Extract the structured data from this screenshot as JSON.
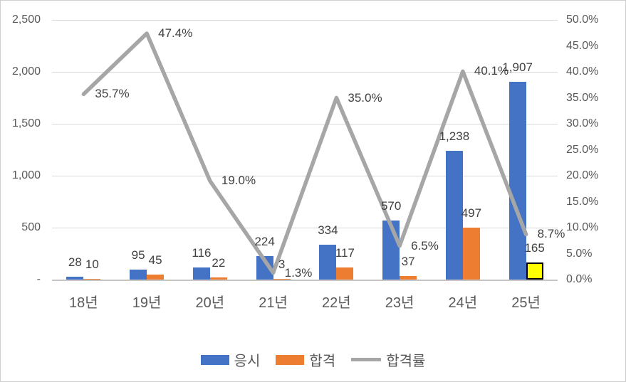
{
  "chart_data": {
    "type": "combo_bar_line",
    "title": "",
    "categories": [
      "18년",
      "19년",
      "20년",
      "21년",
      "22년",
      "23년",
      "24년",
      "25년"
    ],
    "series": [
      {
        "name": "응시",
        "type": "bar",
        "axis": "primary",
        "color": "#4472C4",
        "values": [
          28,
          95,
          116,
          224,
          334,
          570,
          1238,
          1907
        ],
        "labels": [
          "28",
          "95",
          "116",
          "224",
          "334",
          "570",
          "1,238",
          "1,907"
        ]
      },
      {
        "name": "합격",
        "type": "bar",
        "axis": "primary",
        "color": "#ED7D31",
        "values": [
          10,
          45,
          22,
          3,
          117,
          37,
          497,
          165
        ],
        "labels": [
          "10",
          "45",
          "22",
          "3",
          "117",
          "37",
          "497",
          "165"
        ],
        "highlight": {
          "index": 7,
          "fill": "#FFFF00",
          "stroke": "#000000"
        }
      },
      {
        "name": "합격률",
        "type": "line",
        "axis": "secondary",
        "color": "#A6A6A6",
        "values": [
          35.7,
          47.4,
          19.0,
          1.3,
          35.0,
          6.5,
          40.1,
          8.7
        ],
        "labels": [
          "35.7%",
          "47.4%",
          "19.0%",
          "1.3%",
          "35.0%",
          "6.5%",
          "40.1%",
          "8.7%"
        ]
      }
    ],
    "primary_axis": {
      "min": 0,
      "max": 2500,
      "step": 500,
      "tick_labels": [
        "-",
        "500",
        "1,000",
        "1,500",
        "2,000",
        "2,500"
      ]
    },
    "secondary_axis": {
      "min": 0,
      "max": 50,
      "step": 5,
      "tick_labels": [
        "0.0%",
        "5.0%",
        "10.0%",
        "15.0%",
        "20.0%",
        "25.0%",
        "30.0%",
        "35.0%",
        "40.0%",
        "45.0%",
        "50.0%"
      ]
    },
    "legend": {
      "position": "bottom"
    },
    "grid": true,
    "colors": {
      "gridline": "#D9D9D9",
      "axis_line": "#C6C6C6",
      "axis_text": "#595959",
      "data_label_text": "#404040",
      "frame_border": "#CFCFCF",
      "background": "#FFFFFF"
    }
  }
}
